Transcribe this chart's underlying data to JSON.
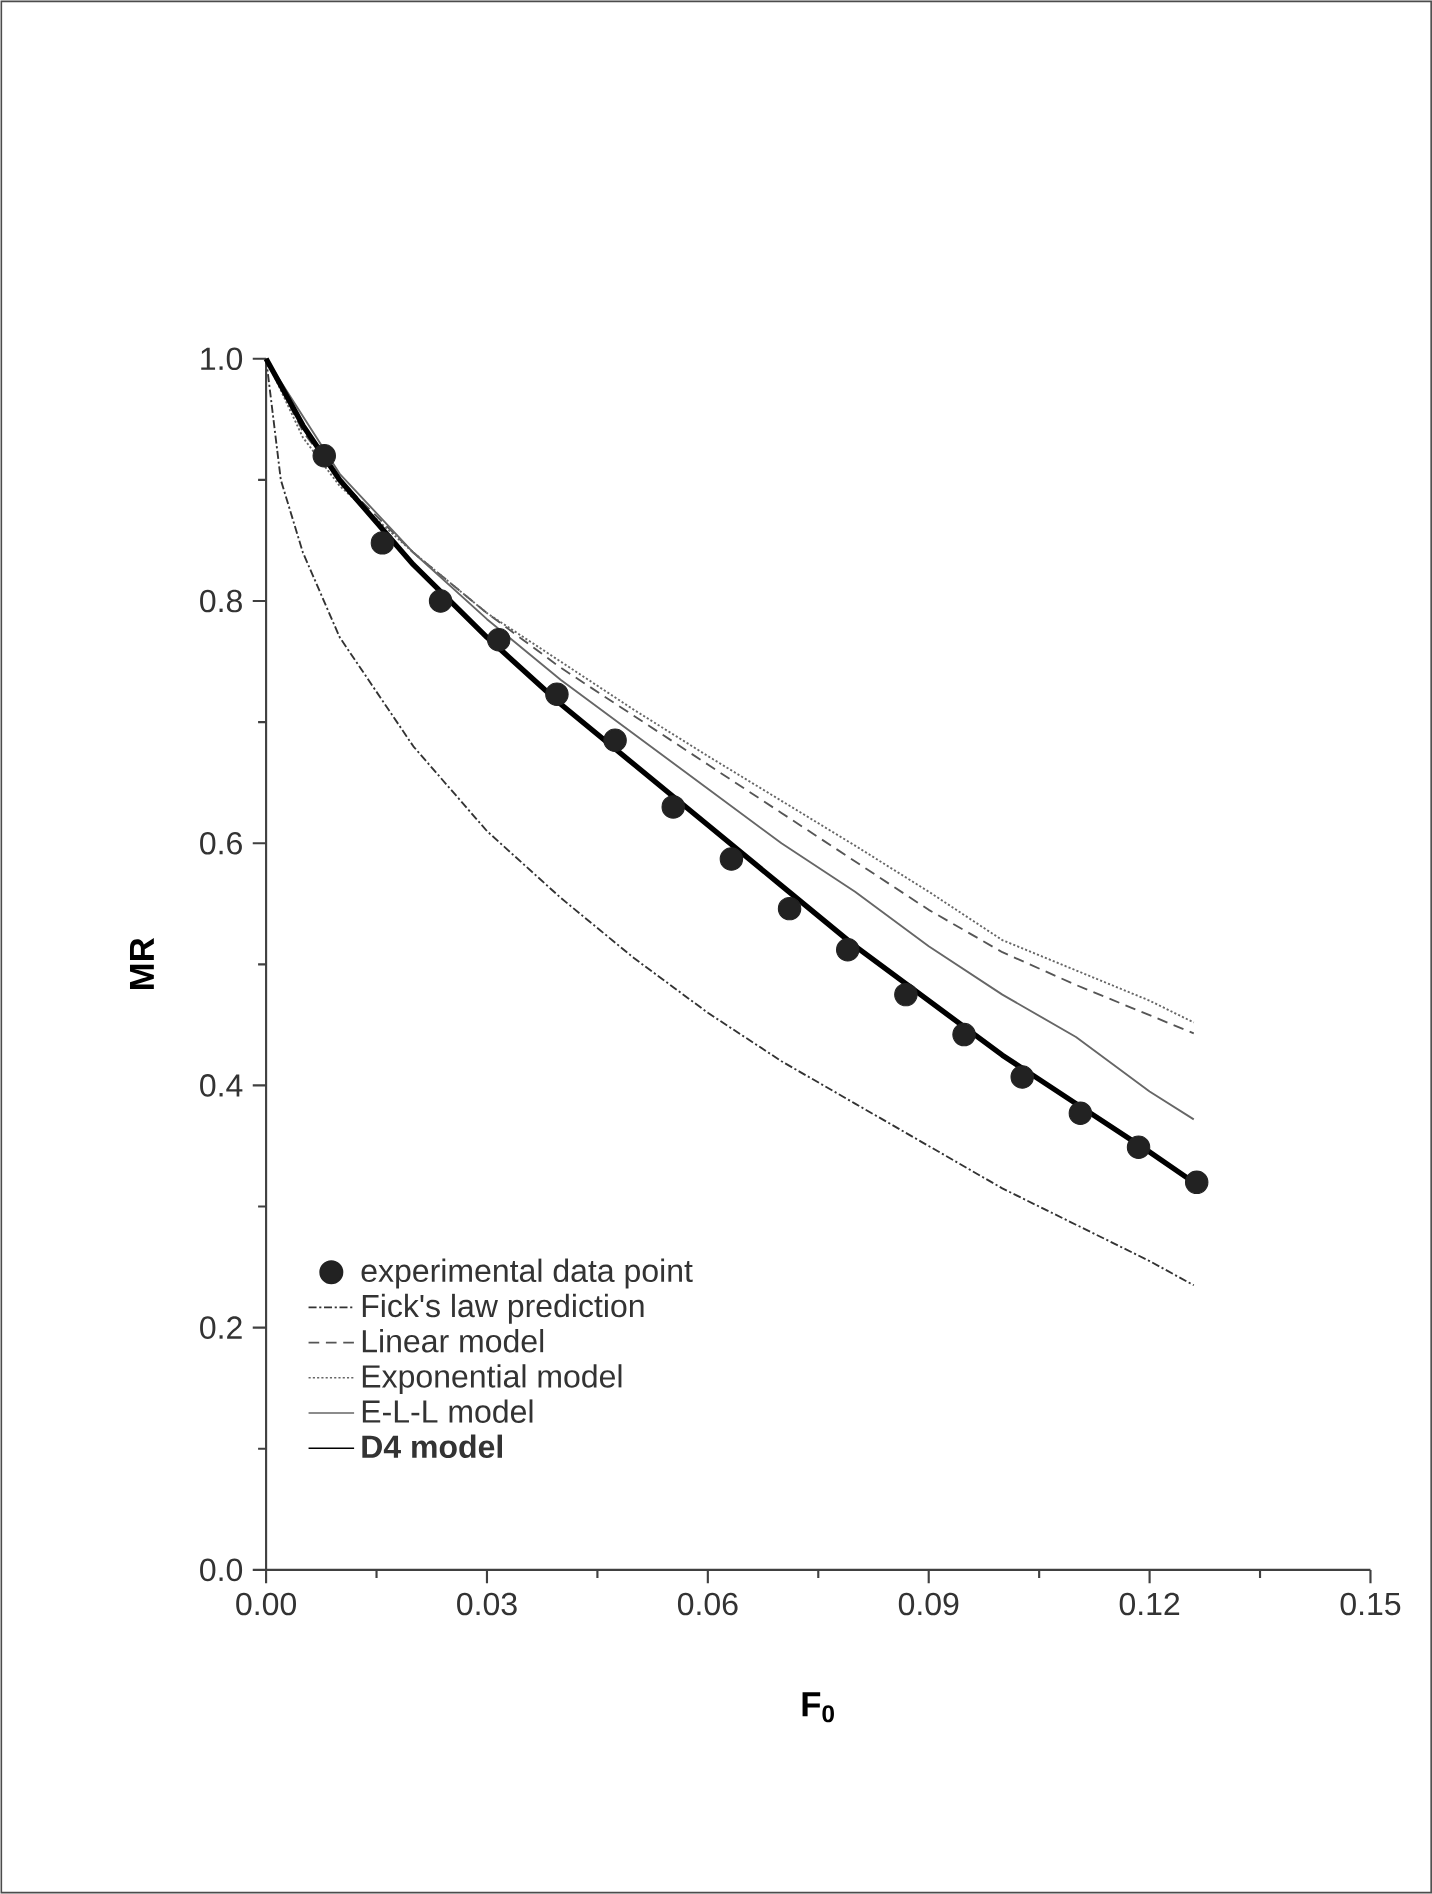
{
  "chart_data": {
    "type": "line",
    "xlabel": "**F$_{0}$**",
    "ylabel": "**MR**",
    "xlim": [
      0,
      0.15
    ],
    "ylim": [
      0,
      1
    ],
    "xticks": [
      {
        "value": 0,
        "label": "0.00"
      },
      0.03,
      0.06,
      0.09,
      0.12,
      0.15
    ],
    "yticks": [
      {
        "value": 0,
        "label": "0.0"
      },
      0.2,
      0.4,
      0.6,
      0.8,
      {
        "value": 1,
        "label": "1.0"
      }
    ],
    "legend": "bottom left",
    "grid": false,
    "series": [
      {
        "name": "experimental data point",
        "type": "scatter",
        "marker": "circle",
        "color": "#222222",
        "x": [
          0.0079,
          0.0158,
          0.0237,
          0.0316,
          0.0395,
          0.0474,
          0.0553,
          0.0632,
          0.0711,
          0.079,
          0.0869,
          0.0948,
          0.1027,
          0.1106,
          0.1185,
          0.1264
        ],
        "values": [
          0.92,
          0.848,
          0.8,
          0.768,
          0.723,
          0.685,
          0.63,
          0.587,
          0.546,
          0.512,
          0.475,
          0.442,
          0.407,
          0.377,
          0.349,
          0.32
        ]
      },
      {
        "name": "Fick's law prediction",
        "line_style": "dashdot",
        "color": "#333333",
        "x": [
          0,
          0.002,
          0.005,
          0.01,
          0.02,
          0.03,
          0.04,
          0.05,
          0.06,
          0.07,
          0.08,
          0.09,
          0.1,
          0.11,
          0.12,
          0.126
        ],
        "values": [
          1,
          0.9,
          0.84,
          0.77,
          0.68,
          0.61,
          0.555,
          0.505,
          0.46,
          0.42,
          0.385,
          0.35,
          0.315,
          0.285,
          0.255,
          0.235
        ]
      },
      {
        "name": "Linear model",
        "line_style": "dashed",
        "color": "#555555",
        "x": [
          0,
          0.005,
          0.01,
          0.02,
          0.03,
          0.04,
          0.05,
          0.06,
          0.07,
          0.08,
          0.09,
          0.1,
          0.11,
          0.12,
          0.126
        ],
        "values": [
          1,
          0.94,
          0.9,
          0.84,
          0.79,
          0.745,
          0.705,
          0.665,
          0.625,
          0.585,
          0.545,
          0.51,
          0.483,
          0.458,
          0.443
        ]
      },
      {
        "name": "Exponential model",
        "line_style": "dotted",
        "color": "#666666",
        "x": [
          0,
          0.005,
          0.01,
          0.02,
          0.03,
          0.04,
          0.05,
          0.06,
          0.07,
          0.08,
          0.09,
          0.1,
          0.11,
          0.12,
          0.126
        ],
        "values": [
          1,
          0.935,
          0.895,
          0.84,
          0.79,
          0.75,
          0.71,
          0.672,
          0.635,
          0.598,
          0.56,
          0.52,
          0.495,
          0.47,
          0.452
        ]
      },
      {
        "name": "E-L-L model",
        "line_style": "solid",
        "color": "#666666",
        "x": [
          0,
          0.01,
          0.02,
          0.03,
          0.04,
          0.05,
          0.06,
          0.07,
          0.08,
          0.09,
          0.1,
          0.11,
          0.12,
          0.126
        ],
        "values": [
          1,
          0.905,
          0.84,
          0.785,
          0.735,
          0.69,
          0.645,
          0.6,
          0.56,
          0.515,
          0.475,
          0.44,
          0.395,
          0.372
        ]
      },
      {
        "name": "**D4 model**",
        "line_style": "solid",
        "color": "#000000",
        "x": [
          0,
          0.005,
          0.01,
          0.02,
          0.03,
          0.04,
          0.05,
          0.06,
          0.07,
          0.08,
          0.09,
          0.1,
          0.11,
          0.12,
          0.126
        ],
        "values": [
          1,
          0.945,
          0.9,
          0.83,
          0.77,
          0.715,
          0.665,
          0.615,
          0.565,
          0.515,
          0.47,
          0.425,
          0.385,
          0.345,
          0.32
        ]
      }
    ]
  }
}
